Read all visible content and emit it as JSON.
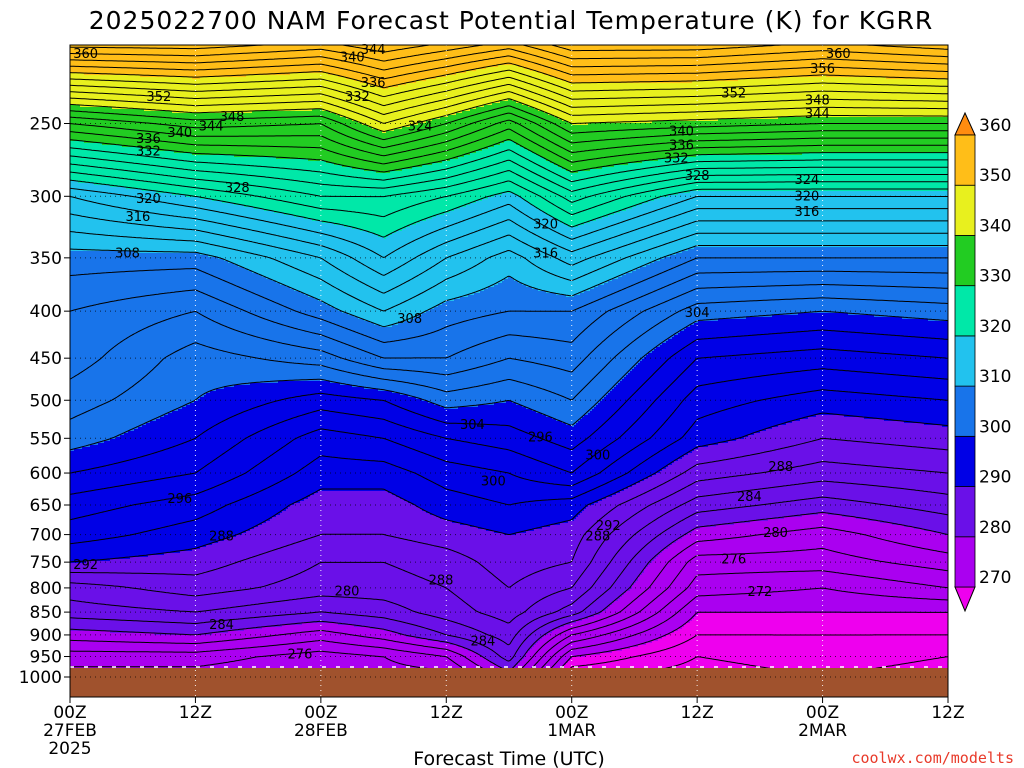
{
  "chart_data": {
    "type": "heatmap",
    "title": "2025022700 NAM Forecast Potential Temperature (K) for KGRR",
    "xlabel": "Forecast Time (UTC)",
    "ylabel": "",
    "watermark": "coolwx.com/modelts",
    "y_scale": "log-pressure",
    "y_ticks": [
      250,
      300,
      350,
      400,
      450,
      500,
      550,
      600,
      650,
      700,
      750,
      800,
      850,
      900,
      950,
      1000
    ],
    "ylim": [
      1000,
      200
    ],
    "x_ticks": [
      {
        "hour": 0,
        "line1": "00Z",
        "line2": "27FEB",
        "line3": "2025"
      },
      {
        "hour": 12,
        "line1": "12Z",
        "line2": "",
        "line3": ""
      },
      {
        "hour": 24,
        "line1": "00Z",
        "line2": "28FEB",
        "line3": ""
      },
      {
        "hour": 36,
        "line1": "12Z",
        "line2": "",
        "line3": ""
      },
      {
        "hour": 48,
        "line1": "00Z",
        "line2": "1MAR",
        "line3": ""
      },
      {
        "hour": 60,
        "line1": "12Z",
        "line2": "",
        "line3": ""
      },
      {
        "hour": 72,
        "line1": "00Z",
        "line2": "2MAR",
        "line3": ""
      },
      {
        "hour": 84,
        "line1": "12Z",
        "line2": "",
        "line3": ""
      }
    ],
    "xlim": [
      0,
      84
    ],
    "grid": true,
    "colorbar": {
      "labels": [
        "270",
        "280",
        "290",
        "300",
        "310",
        "320",
        "330",
        "340",
        "350",
        "360"
      ],
      "bands": [
        {
          "lo": 260,
          "hi": 270,
          "color": "#ee00ee"
        },
        {
          "lo": 270,
          "hi": 280,
          "color": "#aa00f0"
        },
        {
          "lo": 280,
          "hi": 290,
          "color": "#6a10e8"
        },
        {
          "lo": 290,
          "hi": 300,
          "color": "#0000e6"
        },
        {
          "lo": 300,
          "hi": 310,
          "color": "#1874ea"
        },
        {
          "lo": 310,
          "hi": 320,
          "color": "#22c2ee"
        },
        {
          "lo": 320,
          "hi": 330,
          "color": "#00e8a8"
        },
        {
          "lo": 330,
          "hi": 340,
          "color": "#22cc22"
        },
        {
          "lo": 340,
          "hi": 350,
          "color": "#e8f01e"
        },
        {
          "lo": 350,
          "hi": 360,
          "color": "#ffbe18"
        },
        {
          "lo": 360,
          "hi": 370,
          "color": "#ff8c10"
        }
      ]
    },
    "terrain_color": "#a0522d",
    "profile_pressures": [
      1000,
      950,
      900,
      850,
      800,
      750,
      700,
      650,
      600,
      550,
      500,
      450,
      400,
      350,
      300,
      250,
      200
    ],
    "profiles": [
      {
        "hour": 0,
        "theta": [
          273,
          275,
          279,
          283,
          285,
          290,
          293,
          295,
          298,
          301,
          303,
          305,
          306,
          309,
          316,
          334,
          362
        ]
      },
      {
        "hour": 12,
        "theta": [
          273,
          275,
          280,
          284,
          287,
          289,
          291,
          293,
          296,
          298,
          300,
          301,
          304,
          309,
          320,
          337,
          362
        ]
      },
      {
        "hour": 24,
        "theta": [
          272,
          273,
          277,
          282,
          285,
          286,
          288,
          289,
          291,
          293,
          297,
          303,
          309,
          314,
          324,
          336,
          360
        ]
      },
      {
        "hour": 30,
        "theta": [
          273,
          274,
          279,
          283,
          285,
          286,
          288,
          289,
          291,
          294,
          298,
          306,
          312,
          318,
          324,
          342,
          362
        ]
      },
      {
        "hour": 36,
        "theta": [
          273,
          276,
          282,
          285,
          286,
          287,
          289,
          291,
          293,
          296,
          301,
          306,
          309,
          314,
          322,
          338,
          360
        ]
      },
      {
        "hour": 42,
        "theta": [
          279,
          283,
          285,
          287,
          288,
          289,
          290,
          292,
          294,
          297,
          300,
          304,
          308,
          311,
          319,
          333,
          358
        ]
      },
      {
        "hour": 48,
        "theta": [
          266,
          270,
          276,
          283,
          286,
          288,
          289,
          291,
          296,
          299,
          302,
          305,
          308,
          315,
          325,
          340,
          362
        ]
      },
      {
        "hour": 60,
        "theta": [
          265,
          266,
          268,
          270,
          273,
          275,
          279,
          283,
          287,
          291,
          293,
          296,
          301,
          308,
          318,
          339,
          362
        ]
      },
      {
        "hour": 72,
        "theta": [
          266,
          267,
          268,
          270,
          272,
          275,
          277,
          281,
          285,
          288,
          291,
          295,
          300,
          308,
          318,
          338,
          360
        ]
      },
      {
        "hour": 84,
        "theta": [
          265,
          266,
          268,
          270,
          274,
          277,
          280,
          283,
          286,
          289,
          292,
          296,
          301,
          308,
          318,
          338,
          362
        ]
      }
    ],
    "contour_labels": [
      {
        "hour": 1.5,
        "p": 210,
        "text": "360"
      },
      {
        "hour": 27.0,
        "p": 212,
        "text": "340"
      },
      {
        "hour": 29.0,
        "p": 208,
        "text": "344"
      },
      {
        "hour": 29.0,
        "p": 226,
        "text": "336"
      },
      {
        "hour": 27.5,
        "p": 234,
        "text": "332"
      },
      {
        "hour": 73.5,
        "p": 210,
        "text": "360"
      },
      {
        "hour": 72.0,
        "p": 218,
        "text": "356"
      },
      {
        "hour": 63.5,
        "p": 232,
        "text": "352"
      },
      {
        "hour": 71.5,
        "p": 236,
        "text": "348"
      },
      {
        "hour": 71.5,
        "p": 244,
        "text": "344"
      },
      {
        "hour": 8.5,
        "p": 234,
        "text": "352"
      },
      {
        "hour": 15.5,
        "p": 246,
        "text": "348"
      },
      {
        "hour": 13.5,
        "p": 252,
        "text": "344"
      },
      {
        "hour": 10.5,
        "p": 256,
        "text": "340"
      },
      {
        "hour": 7.5,
        "p": 260,
        "text": "336"
      },
      {
        "hour": 7.5,
        "p": 268,
        "text": "332"
      },
      {
        "hour": 33.5,
        "p": 252,
        "text": "324"
      },
      {
        "hour": 58.5,
        "p": 255,
        "text": "340"
      },
      {
        "hour": 58.5,
        "p": 264,
        "text": "336"
      },
      {
        "hour": 58.0,
        "p": 273,
        "text": "332"
      },
      {
        "hour": 60.0,
        "p": 285,
        "text": "328"
      },
      {
        "hour": 70.5,
        "p": 288,
        "text": "324"
      },
      {
        "hour": 70.5,
        "p": 300,
        "text": "320"
      },
      {
        "hour": 70.5,
        "p": 312,
        "text": "316"
      },
      {
        "hour": 16.0,
        "p": 294,
        "text": "328"
      },
      {
        "hour": 7.5,
        "p": 302,
        "text": "320"
      },
      {
        "hour": 6.5,
        "p": 316,
        "text": "316"
      },
      {
        "hour": 45.5,
        "p": 322,
        "text": "320"
      },
      {
        "hour": 45.5,
        "p": 346,
        "text": "316"
      },
      {
        "hour": 5.5,
        "p": 346,
        "text": "308"
      },
      {
        "hour": 60.0,
        "p": 402,
        "text": "304"
      },
      {
        "hour": 32.5,
        "p": 408,
        "text": "308"
      },
      {
        "hour": 38.5,
        "p": 532,
        "text": "304"
      },
      {
        "hour": 45.0,
        "p": 549,
        "text": "296"
      },
      {
        "hour": 50.5,
        "p": 574,
        "text": "300"
      },
      {
        "hour": 68.0,
        "p": 591,
        "text": "288"
      },
      {
        "hour": 40.5,
        "p": 613,
        "text": "300"
      },
      {
        "hour": 10.5,
        "p": 640,
        "text": "296"
      },
      {
        "hour": 65.0,
        "p": 637,
        "text": "284"
      },
      {
        "hour": 51.5,
        "p": 685,
        "text": "292"
      },
      {
        "hour": 50.5,
        "p": 703,
        "text": "288"
      },
      {
        "hour": 67.5,
        "p": 697,
        "text": "280"
      },
      {
        "hour": 14.5,
        "p": 703,
        "text": "288"
      },
      {
        "hour": 63.5,
        "p": 745,
        "text": "276"
      },
      {
        "hour": 1.5,
        "p": 755,
        "text": "292"
      },
      {
        "hour": 35.5,
        "p": 785,
        "text": "288"
      },
      {
        "hour": 26.5,
        "p": 807,
        "text": "280"
      },
      {
        "hour": 66.0,
        "p": 808,
        "text": "272"
      },
      {
        "hour": 14.5,
        "p": 878,
        "text": "284"
      },
      {
        "hour": 39.5,
        "p": 915,
        "text": "284"
      },
      {
        "hour": 22.0,
        "p": 945,
        "text": "276"
      }
    ]
  }
}
